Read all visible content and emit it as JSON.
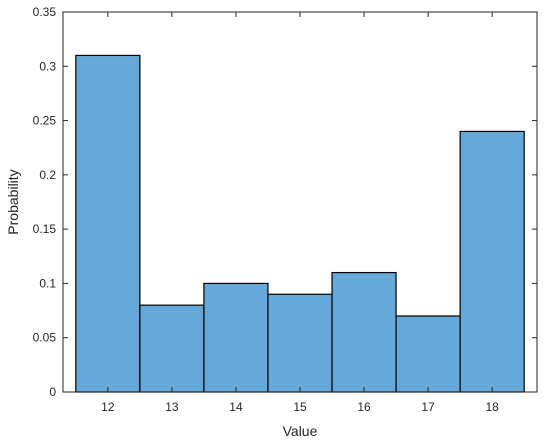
{
  "chart_data": {
    "type": "bar",
    "title": "",
    "xlabel": "Value",
    "ylabel": "Probability",
    "categories": [
      "12",
      "13",
      "14",
      "15",
      "16",
      "17",
      "18"
    ],
    "x": [
      12,
      13,
      14,
      15,
      16,
      17,
      18
    ],
    "values": [
      0.31,
      0.08,
      0.1,
      0.09,
      0.11,
      0.07,
      0.24
    ],
    "xlim": [
      11.3,
      18.7
    ],
    "ylim": [
      0,
      0.35
    ],
    "yticks": [
      0,
      0.05,
      0.1,
      0.15,
      0.2,
      0.25,
      0.3,
      0.35
    ],
    "ytick_labels": [
      "0",
      "0.05",
      "0.1",
      "0.15",
      "0.2",
      "0.25",
      "0.3",
      "0.35"
    ],
    "bar_color": "#66a9d8",
    "edge_color": "#000000",
    "grid": false,
    "legend": "none"
  }
}
